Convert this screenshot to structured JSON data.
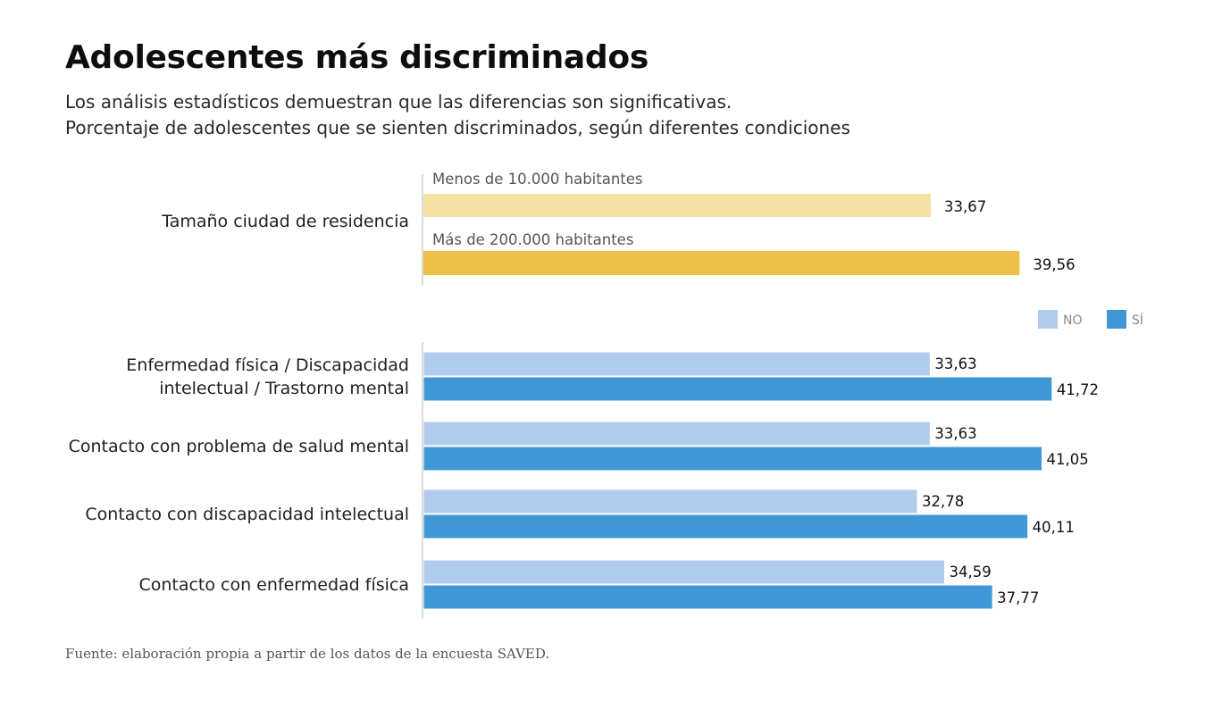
{
  "header": {
    "title": "Adolescentes más discriminados",
    "subtitle_line1": "Los análisis estadísticos demuestran que las diferencias son significativas.",
    "subtitle_line2": "Porcentaje de adolescentes que se sienten discriminados, según diferentes condiciones"
  },
  "footer": {
    "source": "Fuente: elaboración propia a partir de los datos de la encuesta SAVED."
  },
  "chart_data": [
    {
      "type": "bar",
      "orientation": "horizontal",
      "categories": [
        "Tamaño ciudad de residencia"
      ],
      "series": [
        {
          "name": "Menos de 10.000 habitantes",
          "values": [
            33.67
          ],
          "labels": [
            "33,67"
          ],
          "color": "#f5e1a4"
        },
        {
          "name": "Más de 200.000 habitantes",
          "values": [
            39.56
          ],
          "labels": [
            "39,56"
          ],
          "color": "#ebc045"
        }
      ]
    },
    {
      "type": "bar",
      "orientation": "horizontal",
      "categories": [
        "Enfermedad física / Discapacidad intelectual / Trastorno mental",
        "Contacto con problema de salud mental",
        "Contacto con discapacidad intelectual",
        "Contacto con enfermedad física"
      ],
      "category_lines": [
        [
          "Enfermedad física / Discapacidad",
          "intelectual / Trastorno mental"
        ],
        [
          "Contacto con problema de salud mental"
        ],
        [
          "Contacto con discapacidad intelectual"
        ],
        [
          "Contacto con enfermedad física"
        ]
      ],
      "series": [
        {
          "name": "NO",
          "values": [
            33.63,
            33.63,
            32.78,
            34.59
          ],
          "labels": [
            "33,63",
            "33,63",
            "32,78",
            "34,59"
          ],
          "color": "#b0cbec"
        },
        {
          "name": "SÍ",
          "values": [
            41.72,
            41.05,
            40.11,
            37.77
          ],
          "labels": [
            "41,72",
            "41,05",
            "40,11",
            "37,77"
          ],
          "color": "#4097d5"
        }
      ],
      "legend_position": "top-right"
    }
  ]
}
